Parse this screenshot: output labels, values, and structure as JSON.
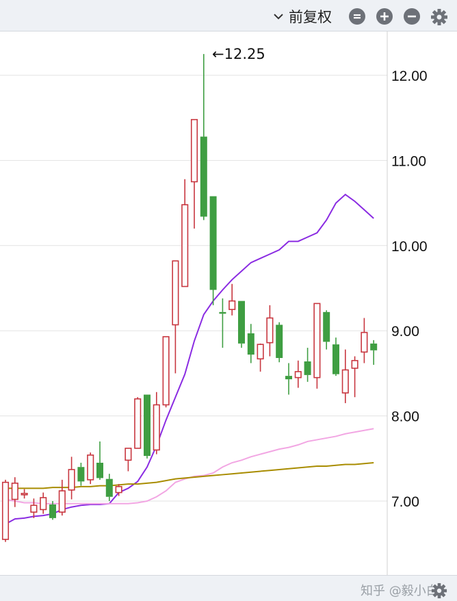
{
  "toolbar": {
    "adjust_label": "前复权",
    "buttons": [
      "reset-zoom-icon",
      "zoom-in-icon",
      "zoom-out-icon",
      "gear-icon"
    ]
  },
  "watermark": "知乎 @毅小白",
  "colors": {
    "up": "#c8363f",
    "down": "#3f9e42",
    "ma_purple": "#8a2be2",
    "ma_pink": "#f2a6e3",
    "ma_olive": "#a88c00",
    "grid": "#e3e3e3",
    "toolbar_bg": "#eef1f5"
  },
  "chart_data": {
    "type": "candlestick",
    "ylim": [
      6.2,
      12.6
    ],
    "yticks": [
      7.0,
      8.0,
      9.0,
      10.0,
      11.0,
      12.0
    ],
    "ytick_labels": [
      "7.00",
      "8.00",
      "9.00",
      "10.00",
      "11.00",
      "12.00"
    ],
    "annotation": {
      "text": "←12.25",
      "value": 12.25
    },
    "candles": [
      {
        "o": 6.55,
        "c": 7.22,
        "h": 7.25,
        "l": 6.52
      },
      {
        "o": 7.02,
        "c": 7.21,
        "h": 7.28,
        "l": 6.93
      },
      {
        "o": 7.09,
        "c": 7.09,
        "h": 7.14,
        "l": 7.03
      },
      {
        "o": 6.87,
        "c": 6.95,
        "h": 7.03,
        "l": 6.8
      },
      {
        "o": 6.9,
        "c": 7.04,
        "h": 7.1,
        "l": 6.85
      },
      {
        "o": 6.96,
        "c": 6.8,
        "h": 7.0,
        "l": 6.78
      },
      {
        "o": 6.87,
        "c": 7.12,
        "h": 7.25,
        "l": 6.83
      },
      {
        "o": 7.13,
        "c": 7.37,
        "h": 7.52,
        "l": 7.02
      },
      {
        "o": 7.4,
        "c": 7.23,
        "h": 7.45,
        "l": 7.18
      },
      {
        "o": 7.25,
        "c": 7.54,
        "h": 7.57,
        "l": 7.2
      },
      {
        "o": 7.45,
        "c": 7.27,
        "h": 7.7,
        "l": 7.25
      },
      {
        "o": 7.26,
        "c": 7.05,
        "h": 7.32,
        "l": 7.0
      },
      {
        "o": 7.1,
        "c": 7.17,
        "h": 7.2,
        "l": 7.06
      },
      {
        "o": 7.48,
        "c": 7.62,
        "h": 7.62,
        "l": 7.35
      },
      {
        "o": 7.62,
        "c": 8.2,
        "h": 8.22,
        "l": 7.62
      },
      {
        "o": 8.25,
        "c": 7.53,
        "h": 8.25,
        "l": 7.5
      },
      {
        "o": 7.6,
        "c": 8.13,
        "h": 8.28,
        "l": 7.55
      },
      {
        "o": 8.13,
        "c": 8.93,
        "h": 8.93,
        "l": 8.1
      },
      {
        "o": 9.07,
        "c": 9.82,
        "h": 9.82,
        "l": 8.5
      },
      {
        "o": 9.52,
        "c": 10.48,
        "h": 10.78,
        "l": 9.52
      },
      {
        "o": 10.75,
        "c": 11.48,
        "h": 11.48,
        "l": 10.2
      },
      {
        "o": 11.28,
        "c": 10.34,
        "h": 12.25,
        "l": 10.3
      },
      {
        "o": 10.58,
        "c": 9.48,
        "h": 10.58,
        "l": 9.3
      },
      {
        "o": 9.22,
        "c": 9.2,
        "h": 9.38,
        "l": 8.8
      },
      {
        "o": 9.25,
        "c": 9.35,
        "h": 9.55,
        "l": 9.18
      },
      {
        "o": 9.35,
        "c": 8.85,
        "h": 9.35,
        "l": 8.8
      },
      {
        "o": 8.97,
        "c": 8.72,
        "h": 9.08,
        "l": 8.62
      },
      {
        "o": 8.67,
        "c": 8.84,
        "h": 8.85,
        "l": 8.52
      },
      {
        "o": 8.86,
        "c": 9.15,
        "h": 9.3,
        "l": 8.7
      },
      {
        "o": 9.07,
        "c": 8.68,
        "h": 9.1,
        "l": 8.63
      },
      {
        "o": 8.47,
        "c": 8.43,
        "h": 8.62,
        "l": 8.25
      },
      {
        "o": 8.45,
        "c": 8.52,
        "h": 8.65,
        "l": 8.33
      },
      {
        "o": 8.64,
        "c": 8.48,
        "h": 8.8,
        "l": 8.4
      },
      {
        "o": 8.45,
        "c": 9.32,
        "h": 9.32,
        "l": 8.32
      },
      {
        "o": 9.22,
        "c": 8.87,
        "h": 9.24,
        "l": 8.78
      },
      {
        "o": 8.84,
        "c": 8.49,
        "h": 8.92,
        "l": 8.47
      },
      {
        "o": 8.27,
        "c": 8.54,
        "h": 8.78,
        "l": 8.15
      },
      {
        "o": 8.56,
        "c": 8.65,
        "h": 8.7,
        "l": 8.22
      },
      {
        "o": 8.75,
        "c": 8.98,
        "h": 9.15,
        "l": 8.62
      },
      {
        "o": 8.85,
        "c": 8.77,
        "h": 8.89,
        "l": 8.6
      }
    ],
    "ma_series": [
      {
        "color_key": "ma_purple",
        "values": [
          6.73,
          6.79,
          6.8,
          6.82,
          6.83,
          6.85,
          6.9,
          6.93,
          6.95,
          6.96,
          6.96,
          6.97,
          7.1,
          7.15,
          7.23,
          7.4,
          7.65,
          7.95,
          8.22,
          8.49,
          8.88,
          9.19,
          9.35,
          9.48,
          9.6,
          9.7,
          9.8,
          9.85,
          9.9,
          9.95,
          10.05,
          10.05,
          10.1,
          10.15,
          10.3,
          10.5,
          10.6,
          10.52,
          10.42,
          10.32
        ]
      },
      {
        "color_key": "ma_pink",
        "values": [
          7.02,
          7.0,
          6.98,
          6.98,
          6.97,
          6.97,
          6.97,
          6.97,
          6.97,
          6.97,
          6.97,
          6.97,
          6.97,
          6.97,
          6.98,
          7.0,
          7.05,
          7.12,
          7.22,
          7.26,
          7.29,
          7.3,
          7.33,
          7.4,
          7.45,
          7.48,
          7.52,
          7.55,
          7.58,
          7.61,
          7.63,
          7.66,
          7.7,
          7.72,
          7.74,
          7.76,
          7.79,
          7.81,
          7.83,
          7.85
        ]
      },
      {
        "color_key": "ma_olive",
        "values": [
          7.15,
          7.15,
          7.15,
          7.15,
          7.15,
          7.16,
          7.16,
          7.16,
          7.17,
          7.17,
          7.18,
          7.18,
          7.19,
          7.2,
          7.2,
          7.21,
          7.22,
          7.24,
          7.26,
          7.27,
          7.28,
          7.29,
          7.3,
          7.31,
          7.32,
          7.33,
          7.34,
          7.35,
          7.36,
          7.37,
          7.38,
          7.39,
          7.4,
          7.41,
          7.41,
          7.42,
          7.43,
          7.43,
          7.44,
          7.45
        ]
      }
    ]
  }
}
